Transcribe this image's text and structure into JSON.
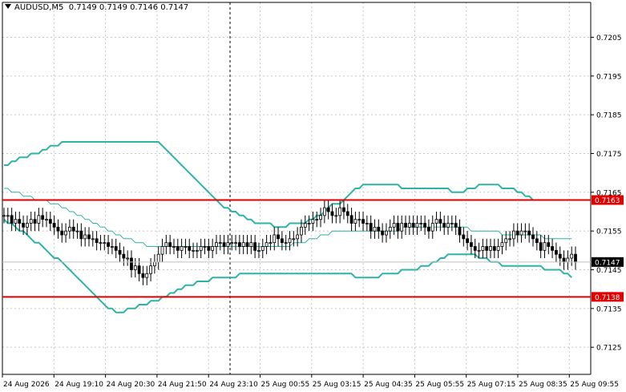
{
  "window": {
    "symbol": "AUDUSD,M5",
    "quote": "0.7149 0.7149 0.7146 0.7147"
  },
  "colors": {
    "background": "#ffffff",
    "grid": "#c8c8c8",
    "axis": "#000000",
    "bands": "#2fb3a6",
    "middle_band": "#2fb3a6",
    "level_lines": "#e00000",
    "candles": "#000000",
    "current_price_bg": "#000000",
    "current_price_text": "#ffffff",
    "level_label_bg": "#e00000",
    "level_label_text": "#ffffff"
  },
  "chart_data": {
    "type": "candlestick",
    "ylim": [
      0.7118,
      0.7214
    ],
    "y_ticks": [
      "0.7205",
      "0.7195",
      "0.7185",
      "0.7175",
      "0.7165",
      "0.7155",
      "0.7145",
      "0.7135",
      "0.7125"
    ],
    "x_ticks": [
      "24 Aug 2026",
      "24 Aug 19:10",
      "24 Aug 20:30",
      "24 Aug 21:50",
      "24 Aug 23:10",
      "25 Aug 00:55",
      "25 Aug 03:15",
      "25 Aug 04:35",
      "25 Aug 05:55",
      "25 Aug 07:15",
      "25 Aug 08:35",
      "25 Aug 09:55"
    ],
    "current_price": "0.7147",
    "levels": [
      {
        "label": "0.7163",
        "value": 0.7163
      },
      {
        "label": "0.7138",
        "value": 0.7138
      }
    ],
    "close": [
      0.7159,
      0.7159,
      0.7157,
      0.7158,
      0.7157,
      0.7156,
      0.7157,
      0.7158,
      0.7157,
      0.7159,
      0.7158,
      0.7158,
      0.7157,
      0.7156,
      0.7155,
      0.7154,
      0.7155,
      0.7156,
      0.7155,
      0.7155,
      0.7153,
      0.7154,
      0.7153,
      0.7153,
      0.7152,
      0.7152,
      0.7152,
      0.7151,
      0.7151,
      0.715,
      0.7149,
      0.7148,
      0.7148,
      0.7145,
      0.7146,
      0.7144,
      0.7143,
      0.7144,
      0.7146,
      0.7147,
      0.7149,
      0.7151,
      0.7152,
      0.7151,
      0.7151,
      0.715,
      0.7151,
      0.7151,
      0.715,
      0.715,
      0.715,
      0.7151,
      0.7151,
      0.715,
      0.7151,
      0.7152,
      0.7152,
      0.7151,
      0.7152,
      0.7152,
      0.7152,
      0.7151,
      0.7152,
      0.7151,
      0.7152,
      0.715,
      0.715,
      0.7151,
      0.7152,
      0.7152,
      0.7154,
      0.7153,
      0.7152,
      0.7152,
      0.7153,
      0.7153,
      0.7154,
      0.7156,
      0.7157,
      0.7157,
      0.7158,
      0.7158,
      0.7159,
      0.7161,
      0.716,
      0.7159,
      0.7159,
      0.7161,
      0.716,
      0.7159,
      0.7157,
      0.7158,
      0.7158,
      0.7157,
      0.7157,
      0.7155,
      0.7156,
      0.7155,
      0.7154,
      0.7155,
      0.7156,
      0.7157,
      0.7155,
      0.7157,
      0.7156,
      0.7157,
      0.7156,
      0.7157,
      0.7157,
      0.7156,
      0.7155,
      0.7157,
      0.7158,
      0.7157,
      0.7156,
      0.7157,
      0.7157,
      0.7156,
      0.7154,
      0.7153,
      0.7152,
      0.7151,
      0.715,
      0.715,
      0.7151,
      0.715,
      0.7151,
      0.715,
      0.7151,
      0.7152,
      0.7153,
      0.7153,
      0.7155,
      0.7154,
      0.7155,
      0.7155,
      0.7154,
      0.7153,
      0.7152,
      0.715,
      0.7152,
      0.7151,
      0.715,
      0.7149,
      0.7148,
      0.7147,
      0.7148,
      0.7149,
      0.7147
    ],
    "bb_upper": [
      0.7172,
      0.7172,
      0.7173,
      0.7173,
      0.7174,
      0.7174,
      0.7174,
      0.7175,
      0.7175,
      0.7175,
      0.7176,
      0.7176,
      0.7177,
      0.7177,
      0.7177,
      0.7178,
      0.7178,
      0.7178,
      0.7178,
      0.7178,
      0.7178,
      0.7178,
      0.7178,
      0.7178,
      0.7178,
      0.7178,
      0.7178,
      0.7178,
      0.7178,
      0.7178,
      0.7178,
      0.7178,
      0.7178,
      0.7178,
      0.7178,
      0.7178,
      0.7178,
      0.7178,
      0.7178,
      0.7178,
      0.7178,
      0.7177,
      0.7176,
      0.7175,
      0.7174,
      0.7173,
      0.7172,
      0.7171,
      0.717,
      0.7169,
      0.7168,
      0.7167,
      0.7166,
      0.7165,
      0.7164,
      0.7163,
      0.7162,
      0.7161,
      0.7161,
      0.716,
      0.716,
      0.7159,
      0.7159,
      0.7158,
      0.7158,
      0.7157,
      0.7157,
      0.7157,
      0.7157,
      0.7157,
      0.7156,
      0.7156,
      0.7156,
      0.7156,
      0.7157,
      0.7157,
      0.7157,
      0.7157,
      0.7157,
      0.7158,
      0.7158,
      0.7159,
      0.7159,
      0.716,
      0.7161,
      0.7162,
      0.7162,
      0.7162,
      0.7163,
      0.7164,
      0.7165,
      0.7166,
      0.7166,
      0.7167,
      0.7167,
      0.7167,
      0.7167,
      0.7167,
      0.7167,
      0.7167,
      0.7167,
      0.7167,
      0.7167,
      0.7166,
      0.7166,
      0.7166,
      0.7166,
      0.7166,
      0.7166,
      0.7166,
      0.7166,
      0.7166,
      0.7166,
      0.7166,
      0.7166,
      0.7166,
      0.7165,
      0.7165,
      0.7165,
      0.7165,
      0.7166,
      0.7166,
      0.7166,
      0.7167,
      0.7167,
      0.7167,
      0.7167,
      0.7167,
      0.7167,
      0.7166,
      0.7166,
      0.7166,
      0.7166,
      0.7165,
      0.7165,
      0.7164,
      0.7164,
      0.7163,
      0.7163,
      0.7163,
      0.7163,
      0.7163,
      0.7163,
      0.7163,
      0.7163,
      0.7163,
      0.7163,
      0.7163
    ],
    "bb_middle": [
      0.7166,
      0.7166,
      0.7165,
      0.7165,
      0.7165,
      0.7164,
      0.7164,
      0.7164,
      0.7163,
      0.7163,
      0.7163,
      0.7163,
      0.7162,
      0.7162,
      0.7162,
      0.7161,
      0.7161,
      0.716,
      0.716,
      0.7159,
      0.7159,
      0.7158,
      0.7158,
      0.7157,
      0.7157,
      0.7156,
      0.7156,
      0.7155,
      0.7155,
      0.7154,
      0.7154,
      0.7153,
      0.7153,
      0.7153,
      0.7152,
      0.7152,
      0.7152,
      0.7151,
      0.7151,
      0.7151,
      0.7151,
      0.7151,
      0.7151,
      0.7151,
      0.7151,
      0.7151,
      0.7151,
      0.7151,
      0.7151,
      0.7151,
      0.7151,
      0.7151,
      0.7151,
      0.7151,
      0.7151,
      0.7151,
      0.7151,
      0.7151,
      0.7151,
      0.7151,
      0.7151,
      0.7151,
      0.7151,
      0.7151,
      0.7151,
      0.7151,
      0.7151,
      0.7151,
      0.7151,
      0.7151,
      0.7151,
      0.7151,
      0.7151,
      0.7151,
      0.7151,
      0.7152,
      0.7152,
      0.7152,
      0.7152,
      0.7153,
      0.7153,
      0.7153,
      0.7154,
      0.7154,
      0.7154,
      0.7155,
      0.7155,
      0.7155,
      0.7155,
      0.7155,
      0.7155,
      0.7155,
      0.7155,
      0.7155,
      0.7155,
      0.7155,
      0.7155,
      0.7155,
      0.7155,
      0.7155,
      0.7155,
      0.7155,
      0.7155,
      0.7156,
      0.7156,
      0.7156,
      0.7156,
      0.7156,
      0.7156,
      0.7156,
      0.7156,
      0.7156,
      0.7156,
      0.7156,
      0.7156,
      0.7156,
      0.7156,
      0.7156,
      0.7156,
      0.7156,
      0.7156,
      0.7155,
      0.7155,
      0.7155,
      0.7155,
      0.7155,
      0.7155,
      0.7155,
      0.7155,
      0.7154,
      0.7154,
      0.7154,
      0.7154,
      0.7154,
      0.7154,
      0.7154,
      0.7154,
      0.7154,
      0.7154,
      0.7154,
      0.7153,
      0.7153,
      0.7153,
      0.7153,
      0.7153,
      0.7153,
      0.7153,
      0.7153
    ],
    "bb_lower": [
      0.7158,
      0.7157,
      0.7157,
      0.7156,
      0.7155,
      0.7155,
      0.7154,
      0.7153,
      0.7152,
      0.7152,
      0.7151,
      0.715,
      0.7149,
      0.7148,
      0.7148,
      0.7147,
      0.7146,
      0.7145,
      0.7144,
      0.7143,
      0.7142,
      0.7141,
      0.714,
      0.7139,
      0.7138,
      0.7137,
      0.7136,
      0.7135,
      0.7135,
      0.7134,
      0.7134,
      0.7134,
      0.7135,
      0.7135,
      0.7135,
      0.7136,
      0.7136,
      0.7136,
      0.7137,
      0.7137,
      0.7137,
      0.7138,
      0.7138,
      0.7139,
      0.7139,
      0.714,
      0.714,
      0.7141,
      0.7141,
      0.7141,
      0.7142,
      0.7142,
      0.7142,
      0.7142,
      0.7143,
      0.7143,
      0.7143,
      0.7143,
      0.7143,
      0.7143,
      0.7143,
      0.7144,
      0.7144,
      0.7144,
      0.7144,
      0.7144,
      0.7144,
      0.7144,
      0.7144,
      0.7144,
      0.7144,
      0.7144,
      0.7144,
      0.7144,
      0.7144,
      0.7144,
      0.7144,
      0.7144,
      0.7144,
      0.7144,
      0.7144,
      0.7144,
      0.7144,
      0.7144,
      0.7144,
      0.7144,
      0.7144,
      0.7144,
      0.7144,
      0.7144,
      0.7144,
      0.7143,
      0.7143,
      0.7143,
      0.7143,
      0.7143,
      0.7143,
      0.7143,
      0.7144,
      0.7144,
      0.7144,
      0.7144,
      0.7144,
      0.7145,
      0.7145,
      0.7145,
      0.7145,
      0.7145,
      0.7146,
      0.7146,
      0.7146,
      0.7147,
      0.7147,
      0.7148,
      0.7148,
      0.7149,
      0.7149,
      0.7149,
      0.7149,
      0.7149,
      0.7149,
      0.7149,
      0.7149,
      0.7148,
      0.7148,
      0.7148,
      0.7147,
      0.7147,
      0.7147,
      0.7146,
      0.7146,
      0.7146,
      0.7146,
      0.7146,
      0.7146,
      0.7146,
      0.7146,
      0.7146,
      0.7146,
      0.7146,
      0.7145,
      0.7145,
      0.7145,
      0.7145,
      0.7145,
      0.7144,
      0.7144,
      0.7143
    ]
  }
}
